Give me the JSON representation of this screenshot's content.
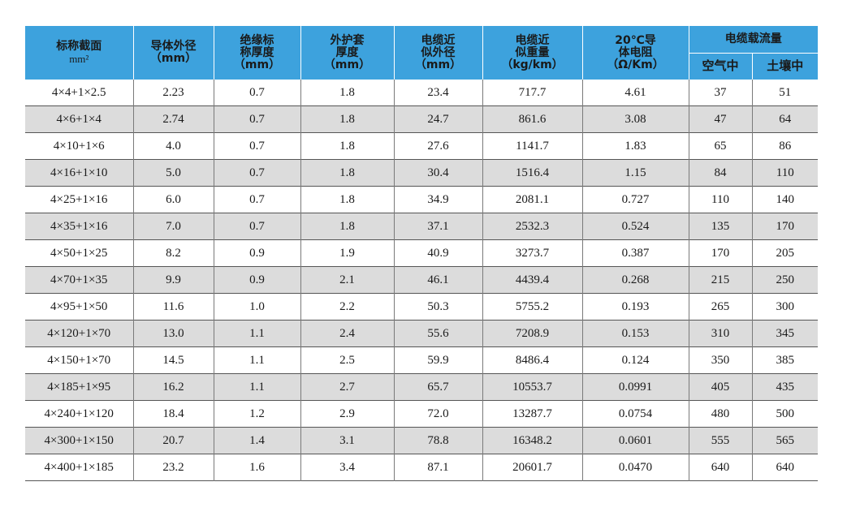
{
  "header": {
    "col_section": [
      "标称截面",
      "mm²"
    ],
    "col_conductor_od": [
      "导体外径",
      "（mm）"
    ],
    "col_insulation": [
      "绝缘标",
      "称厚度",
      "（mm）"
    ],
    "col_sheath": [
      "外护套",
      "厚度",
      "（mm）"
    ],
    "col_cable_od": [
      "电缆近",
      "似外径",
      "（mm）"
    ],
    "col_weight": [
      "电缆近",
      "似重量",
      "（kg/km）"
    ],
    "col_resistance": [
      "20℃导",
      "体电阻",
      "（Ω/Km）"
    ],
    "col_ampacity": "电缆载流量",
    "col_air": "空气中",
    "col_soil": "土壤中"
  },
  "rows": [
    [
      "4×4+1×2.5",
      "2.23",
      "0.7",
      "1.8",
      "23.4",
      "717.7",
      "4.61",
      "37",
      "51"
    ],
    [
      "4×6+1×4",
      "2.74",
      "0.7",
      "1.8",
      "24.7",
      "861.6",
      "3.08",
      "47",
      "64"
    ],
    [
      "4×10+1×6",
      "4.0",
      "0.7",
      "1.8",
      "27.6",
      "1141.7",
      "1.83",
      "65",
      "86"
    ],
    [
      "4×16+1×10",
      "5.0",
      "0.7",
      "1.8",
      "30.4",
      "1516.4",
      "1.15",
      "84",
      "110"
    ],
    [
      "4×25+1×16",
      "6.0",
      "0.7",
      "1.8",
      "34.9",
      "2081.1",
      "0.727",
      "110",
      "140"
    ],
    [
      "4×35+1×16",
      "7.0",
      "0.7",
      "1.8",
      "37.1",
      "2532.3",
      "0.524",
      "135",
      "170"
    ],
    [
      "4×50+1×25",
      "8.2",
      "0.9",
      "1.9",
      "40.9",
      "3273.7",
      "0.387",
      "170",
      "205"
    ],
    [
      "4×70+1×35",
      "9.9",
      "0.9",
      "2.1",
      "46.1",
      "4439.4",
      "0.268",
      "215",
      "250"
    ],
    [
      "4×95+1×50",
      "11.6",
      "1.0",
      "2.2",
      "50.3",
      "5755.2",
      "0.193",
      "265",
      "300"
    ],
    [
      "4×120+1×70",
      "13.0",
      "1.1",
      "2.4",
      "55.6",
      "7208.9",
      "0.153",
      "310",
      "345"
    ],
    [
      "4×150+1×70",
      "14.5",
      "1.1",
      "2.5",
      "59.9",
      "8486.4",
      "0.124",
      "350",
      "385"
    ],
    [
      "4×185+1×95",
      "16.2",
      "1.1",
      "2.7",
      "65.7",
      "10553.7",
      "0.0991",
      "405",
      "435"
    ],
    [
      "4×240+1×120",
      "18.4",
      "1.2",
      "2.9",
      "72.0",
      "13287.7",
      "0.0754",
      "480",
      "500"
    ],
    [
      "4×300+1×150",
      "20.7",
      "1.4",
      "3.1",
      "78.8",
      "16348.2",
      "0.0601",
      "555",
      "565"
    ],
    [
      "4×400+1×185",
      "23.2",
      "1.6",
      "3.4",
      "87.1",
      "20601.7",
      "0.0470",
      "640",
      "640"
    ]
  ],
  "colors": {
    "header_bg": "#3da2dd",
    "stripe_bg": "#dcdcdc",
    "text": "#1a1a1a"
  }
}
